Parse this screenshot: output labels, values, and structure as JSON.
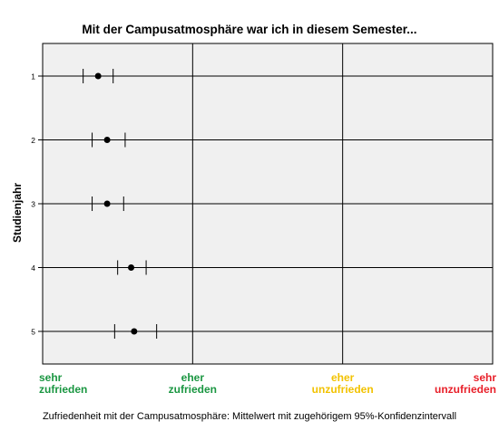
{
  "chart_data": {
    "type": "scatter",
    "title": "Mit der Campusatmosphäre war ich in diesem Semester...",
    "ylabel": "Studienjahr",
    "xlabel": "Zufriedenheit mit der Campusatmosphäre: Mittelwert mit zugehörigem 95%-Konfidenzintervall",
    "xlim": [
      1,
      4
    ],
    "x_tick_labels": [
      {
        "line1": "sehr",
        "line2": "zufrieden",
        "color": "#1a9641"
      },
      {
        "line1": "eher",
        "line2": "zufrieden",
        "color": "#1a9641"
      },
      {
        "line1": "eher",
        "line2": "unzufrieden",
        "color": "#f2c200"
      },
      {
        "line1": "sehr",
        "line2": "unzufrieden",
        "color": "#e8202a"
      }
    ],
    "categories": [
      "1",
      "2",
      "3",
      "4",
      "5"
    ],
    "series": [
      {
        "points": [
          {
            "y": "1",
            "mean": 1.37,
            "ci": [
              1.27,
              1.47
            ]
          },
          {
            "y": "2",
            "mean": 1.43,
            "ci": [
              1.33,
              1.55
            ]
          },
          {
            "y": "3",
            "mean": 1.43,
            "ci": [
              1.33,
              1.54
            ]
          },
          {
            "y": "4",
            "mean": 1.59,
            "ci": [
              1.5,
              1.69
            ]
          },
          {
            "y": "5",
            "mean": 1.61,
            "ci": [
              1.48,
              1.76
            ]
          }
        ]
      }
    ],
    "colors": {
      "point": "#000000",
      "grid": "#000000",
      "background": "#f0f0f0"
    },
    "grid": true
  }
}
